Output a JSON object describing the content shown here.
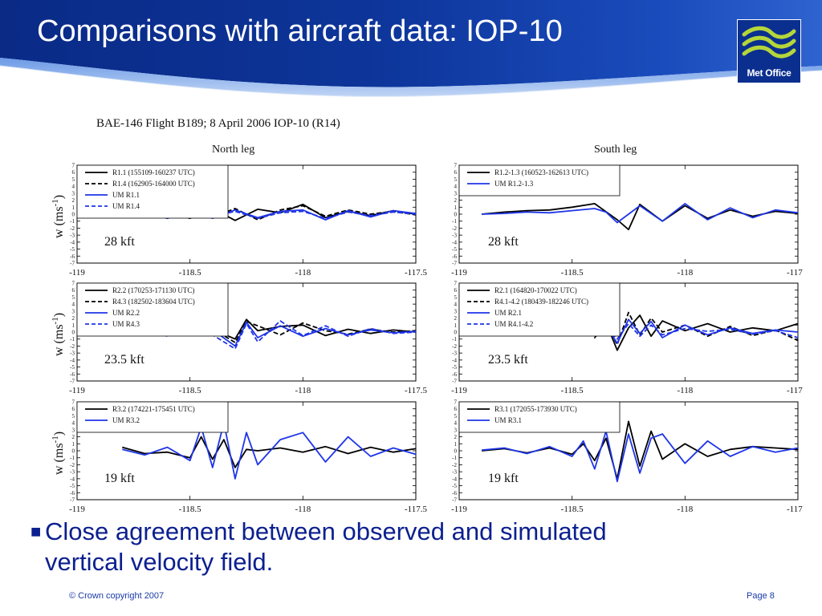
{
  "slide": {
    "title": "Comparisons with aircraft data: IOP-10",
    "logo_text": "Met Office",
    "bullet": "Close agreement between observed and simulated vertical velocity field.",
    "footer_left": "© Crown copyright 2007",
    "footer_right": "Page 8",
    "colors": {
      "header_blue": "#0b2f8f",
      "header_light": "#3f73d6",
      "bullet_text": "#0b1f8f",
      "footer_text": "#1b3aa8",
      "logo_wave": "#b5d63a"
    }
  },
  "chart_data": {
    "type": "line",
    "title": "BAE-146 Flight B189; 8 April 2006 IOP-10 (R14)",
    "column_titles": [
      "North leg",
      "South leg"
    ],
    "ylabel": "w (ms-1)",
    "xlim": [
      -119,
      -117.5
    ],
    "ylim": [
      -7,
      7
    ],
    "xticks": [
      "-119",
      "-118.5",
      "-118",
      "-117.5"
    ],
    "yticks": [
      "7",
      "6",
      "5",
      "4",
      "3",
      "2",
      "1",
      "0",
      "-1",
      "-2",
      "-3",
      "-4",
      "-5",
      "-6",
      "-7"
    ],
    "panels": [
      {
        "leg": "North leg",
        "altitude": "28 kft",
        "legend": [
          "R1.1 (155109-160237 UTC)",
          "R1.4 (162905-164000 UTC)",
          "UM R1.1",
          "UM R1.4"
        ],
        "series": [
          {
            "name": "R1.1 (155109-160237 UTC)",
            "color": "#000000",
            "dash": "solid",
            "x": [
              -118.8,
              -118.7,
              -118.6,
              -118.5,
              -118.4,
              -118.3,
              -118.2,
              -118.1,
              -118.0,
              -117.9,
              -117.8,
              -117.7,
              -117.6,
              -117.5
            ],
            "y": [
              0.0,
              0.8,
              0.3,
              -0.6,
              0.8,
              -0.9,
              0.7,
              0.2,
              1.4,
              -0.5,
              0.4,
              -0.2,
              0.5,
              0.0
            ]
          },
          {
            "name": "R1.4 (162905-164000 UTC)",
            "color": "#000000",
            "dash": "dashed",
            "x": [
              -118.8,
              -118.7,
              -118.6,
              -118.5,
              -118.4,
              -118.3,
              -118.2,
              -118.1,
              -118.0,
              -117.9,
              -117.8,
              -117.7,
              -117.6,
              -117.5
            ],
            "y": [
              0.2,
              0.5,
              -0.3,
              0.6,
              -0.4,
              0.8,
              -0.8,
              0.6,
              1.2,
              -0.3,
              0.6,
              0.0,
              0.4,
              -0.1
            ]
          },
          {
            "name": "UM R1.1",
            "color": "#1f35e8",
            "dash": "solid",
            "x": [
              -118.8,
              -118.7,
              -118.6,
              -118.5,
              -118.4,
              -118.3,
              -118.2,
              -118.1,
              -118.0,
              -117.9,
              -117.8,
              -117.7,
              -117.6,
              -117.5
            ],
            "y": [
              -0.2,
              0.4,
              -0.4,
              0.5,
              -0.6,
              0.6,
              -0.5,
              0.4,
              0.6,
              -0.8,
              0.5,
              -0.4,
              0.5,
              0.1
            ]
          },
          {
            "name": "UM R1.4",
            "color": "#1f35e8",
            "dash": "dashed",
            "x": [
              -118.8,
              -118.7,
              -118.6,
              -118.5,
              -118.4,
              -118.3,
              -118.2,
              -118.1,
              -118.0,
              -117.9,
              -117.8,
              -117.7,
              -117.6,
              -117.5
            ],
            "y": [
              0.1,
              0.2,
              -0.6,
              0.3,
              -0.3,
              0.4,
              -0.6,
              0.2,
              0.4,
              -0.6,
              0.3,
              -0.2,
              0.3,
              0.0
            ]
          }
        ]
      },
      {
        "leg": "South leg",
        "altitude": "28 kft",
        "legend": [
          "R1.2-1.3 (160523-162613 UTC)",
          "UM R1.2-1.3"
        ],
        "series": [
          {
            "name": "R1.2-1.3 (160523-162613 UTC)",
            "color": "#000000",
            "dash": "solid",
            "x": [
              -118.9,
              -118.8,
              -118.7,
              -118.6,
              -118.5,
              -118.4,
              -118.3,
              -118.25,
              -118.2,
              -118.1,
              -118.0,
              -117.9,
              -117.8,
              -117.7,
              -117.6,
              -117.5
            ],
            "y": [
              0.0,
              0.3,
              0.5,
              0.6,
              1.0,
              1.5,
              -0.8,
              -2.2,
              1.4,
              -1.0,
              1.2,
              -0.6,
              0.6,
              -0.3,
              0.4,
              0.1
            ]
          },
          {
            "name": "UM R1.2-1.3",
            "color": "#1f35e8",
            "dash": "solid",
            "x": [
              -118.9,
              -118.8,
              -118.7,
              -118.6,
              -118.5,
              -118.4,
              -118.35,
              -118.3,
              -118.2,
              -118.1,
              -118.0,
              -117.9,
              -117.8,
              -117.7,
              -117.6,
              -117.5
            ],
            "y": [
              0.0,
              0.1,
              0.3,
              0.2,
              0.5,
              0.8,
              0.3,
              -1.2,
              1.2,
              -1.0,
              1.5,
              -0.8,
              0.9,
              -0.5,
              0.6,
              0.2
            ]
          }
        ]
      },
      {
        "leg": "North leg",
        "altitude": "23.5 kft",
        "legend": [
          "R2.2 (170253-171130 UTC)",
          "R4.3 (182502-183604 UTC)",
          "UM R2.2",
          "UM R4.3"
        ],
        "series": [
          {
            "name": "R2.2 (170253-171130 UTC)",
            "color": "#000000",
            "dash": "solid",
            "x": [
              -118.9,
              -118.8,
              -118.7,
              -118.6,
              -118.5,
              -118.4,
              -118.3,
              -118.25,
              -118.2,
              -118.1,
              -118.0,
              -117.9,
              -117.8,
              -117.7,
              -117.6,
              -117.5
            ],
            "y": [
              0.0,
              0.4,
              -0.3,
              0.5,
              0.6,
              0.4,
              -1.0,
              1.8,
              0.2,
              0.8,
              1.0,
              -0.5,
              0.4,
              -0.2,
              0.3,
              0.0
            ]
          },
          {
            "name": "R4.3 (182502-183604 UTC)",
            "color": "#000000",
            "dash": "dashed",
            "x": [
              -118.9,
              -118.8,
              -118.7,
              -118.6,
              -118.5,
              -118.4,
              -118.3,
              -118.25,
              -118.2,
              -118.1,
              -118.0,
              -117.9,
              -117.8,
              -117.7,
              -117.6,
              -117.5
            ],
            "y": [
              0.2,
              0.6,
              0.2,
              -0.4,
              0.9,
              0.5,
              -1.5,
              1.5,
              0.9,
              -0.4,
              1.3,
              0.2,
              -0.3,
              0.4,
              0.0,
              0.2
            ]
          },
          {
            "name": "UM R2.2",
            "color": "#1f35e8",
            "dash": "solid",
            "x": [
              -118.9,
              -118.8,
              -118.7,
              -118.6,
              -118.5,
              -118.4,
              -118.3,
              -118.25,
              -118.2,
              -118.1,
              -118.0,
              -117.9,
              -117.8,
              -117.7,
              -117.6,
              -117.5
            ],
            "y": [
              0.0,
              0.2,
              -0.4,
              0.4,
              -0.5,
              0.3,
              -2.0,
              1.4,
              -0.8,
              0.9,
              -0.6,
              0.5,
              -0.4,
              0.3,
              -0.1,
              0.1
            ]
          },
          {
            "name": "UM R4.3",
            "color": "#1f35e8",
            "dash": "dashed",
            "x": [
              -118.9,
              -118.8,
              -118.7,
              -118.6,
              -118.5,
              -118.4,
              -118.3,
              -118.25,
              -118.2,
              -118.1,
              -118.0,
              -117.9,
              -117.8,
              -117.7,
              -117.6,
              -117.5
            ],
            "y": [
              0.1,
              -0.3,
              0.5,
              -0.6,
              0.6,
              -0.4,
              -2.4,
              1.2,
              -1.4,
              1.6,
              -0.5,
              0.9,
              -0.6,
              0.5,
              -0.2,
              0.0
            ]
          }
        ]
      },
      {
        "leg": "South leg",
        "altitude": "23.5 kft",
        "legend": [
          "R2.1 (164820-170022 UTC)",
          "R4.1-4.2 (180439-182246 UTC)",
          "UM R2.1",
          "UM R4.1-4.2"
        ],
        "series": [
          {
            "name": "R2.1 (164820-170022 UTC)",
            "color": "#000000",
            "dash": "solid",
            "x": [
              -118.9,
              -118.8,
              -118.7,
              -118.6,
              -118.5,
              -118.45,
              -118.4,
              -118.35,
              -118.3,
              -118.25,
              -118.2,
              -118.15,
              -118.1,
              -118.0,
              -117.9,
              -117.8,
              -117.7,
              -117.6,
              -117.5
            ],
            "y": [
              0.0,
              0.2,
              -0.2,
              0.3,
              0.4,
              1.0,
              2.4,
              1.4,
              -2.6,
              0.6,
              2.4,
              -0.6,
              1.6,
              0.2,
              1.2,
              0.0,
              0.6,
              0.2,
              1.2
            ]
          },
          {
            "name": "R4.1-4.2 (180439-182246 UTC)",
            "color": "#000000",
            "dash": "dashed",
            "x": [
              -118.9,
              -118.8,
              -118.7,
              -118.6,
              -118.5,
              -118.45,
              -118.4,
              -118.35,
              -118.3,
              -118.25,
              -118.2,
              -118.15,
              -118.1,
              -118.0,
              -117.9,
              -117.8,
              -117.7,
              -117.6,
              -117.5
            ],
            "y": [
              0.2,
              -0.2,
              0.4,
              -0.4,
              0.6,
              2.0,
              -0.8,
              1.2,
              -1.8,
              2.8,
              -0.4,
              2.0,
              0.0,
              1.0,
              -0.6,
              0.8,
              -0.5,
              0.3,
              -1.2
            ]
          },
          {
            "name": "UM R2.1",
            "color": "#1f35e8",
            "dash": "solid",
            "x": [
              -118.9,
              -118.8,
              -118.7,
              -118.6,
              -118.5,
              -118.45,
              -118.4,
              -118.35,
              -118.3,
              -118.25,
              -118.2,
              -118.15,
              -118.1,
              -118.0,
              -117.9,
              -117.8,
              -117.7,
              -117.6,
              -117.5
            ],
            "y": [
              0.0,
              0.3,
              -0.3,
              0.4,
              -0.2,
              0.5,
              0.2,
              0.9,
              -1.6,
              1.8,
              -0.2,
              1.5,
              -0.8,
              1.0,
              -0.4,
              0.6,
              -0.2,
              0.3,
              0.0
            ]
          },
          {
            "name": "UM R4.1-4.2",
            "color": "#1f35e8",
            "dash": "dashed",
            "x": [
              -118.9,
              -118.8,
              -118.7,
              -118.6,
              -118.5,
              -118.45,
              -118.4,
              -118.35,
              -118.3,
              -118.25,
              -118.2,
              -118.15,
              -118.1,
              -118.0,
              -117.9,
              -117.8,
              -117.7,
              -117.6,
              -117.5
            ],
            "y": [
              0.1,
              -0.2,
              0.2,
              -0.4,
              0.3,
              0.8,
              -0.2,
              0.6,
              -1.0,
              1.2,
              -0.6,
              1.0,
              -0.4,
              0.5,
              0.1,
              0.4,
              -0.3,
              0.2,
              -0.8
            ]
          }
        ]
      },
      {
        "leg": "North leg",
        "altitude": "19 kft",
        "legend": [
          "R3.2 (174221-175451 UTC)",
          "UM R3.2"
        ],
        "series": [
          {
            "name": "R3.2 (174221-175451 UTC)",
            "color": "#000000",
            "dash": "solid",
            "x": [
              -118.8,
              -118.7,
              -118.6,
              -118.5,
              -118.45,
              -118.4,
              -118.35,
              -118.3,
              -118.25,
              -118.2,
              -118.1,
              -118.0,
              -117.9,
              -117.8,
              -117.7,
              -117.6,
              -117.5
            ],
            "y": [
              0.5,
              -0.4,
              -0.2,
              -1.0,
              2.0,
              -1.2,
              1.6,
              -2.4,
              0.2,
              0.0,
              0.4,
              -0.2,
              0.6,
              -0.4,
              0.5,
              -0.2,
              0.3
            ]
          },
          {
            "name": "UM R3.2",
            "color": "#1f35e8",
            "dash": "solid",
            "x": [
              -118.8,
              -118.7,
              -118.6,
              -118.5,
              -118.45,
              -118.4,
              -118.35,
              -118.3,
              -118.25,
              -118.2,
              -118.1,
              -118.0,
              -117.9,
              -117.8,
              -117.7,
              -117.6,
              -117.5
            ],
            "y": [
              0.2,
              -0.6,
              0.5,
              -1.4,
              3.4,
              -2.4,
              4.0,
              -4.0,
              2.6,
              -2.0,
              1.6,
              2.6,
              -1.6,
              2.0,
              -0.8,
              0.4,
              -0.5
            ]
          }
        ]
      },
      {
        "leg": "South leg",
        "altitude": "19 kft",
        "legend": [
          "R3.1 (172055-173930 UTC)",
          "UM R3.1"
        ],
        "series": [
          {
            "name": "R3.1 (172055-173930 UTC)",
            "color": "#000000",
            "dash": "solid",
            "x": [
              -118.9,
              -118.8,
              -118.7,
              -118.6,
              -118.5,
              -118.45,
              -118.4,
              -118.35,
              -118.3,
              -118.25,
              -118.2,
              -118.15,
              -118.1,
              -118.0,
              -117.9,
              -117.8,
              -117.7,
              -117.6,
              -117.5
            ],
            "y": [
              0.0,
              0.3,
              -0.3,
              0.4,
              -0.5,
              1.0,
              -1.4,
              1.8,
              -4.0,
              4.2,
              -2.2,
              2.8,
              -1.2,
              1.0,
              -0.8,
              0.2,
              0.6,
              0.4,
              0.2
            ]
          },
          {
            "name": "UM R3.1",
            "color": "#1f35e8",
            "dash": "solid",
            "x": [
              -118.9,
              -118.8,
              -118.7,
              -118.6,
              -118.5,
              -118.45,
              -118.4,
              -118.35,
              -118.3,
              -118.25,
              -118.2,
              -118.15,
              -118.1,
              -118.0,
              -117.9,
              -117.8,
              -117.7,
              -117.6,
              -117.5
            ],
            "y": [
              0.1,
              0.4,
              -0.4,
              0.6,
              -0.8,
              1.4,
              -2.6,
              2.8,
              -4.4,
              2.4,
              -3.2,
              1.8,
              2.4,
              -1.8,
              1.4,
              -0.8,
              0.6,
              -0.2,
              0.4
            ]
          }
        ]
      }
    ]
  }
}
